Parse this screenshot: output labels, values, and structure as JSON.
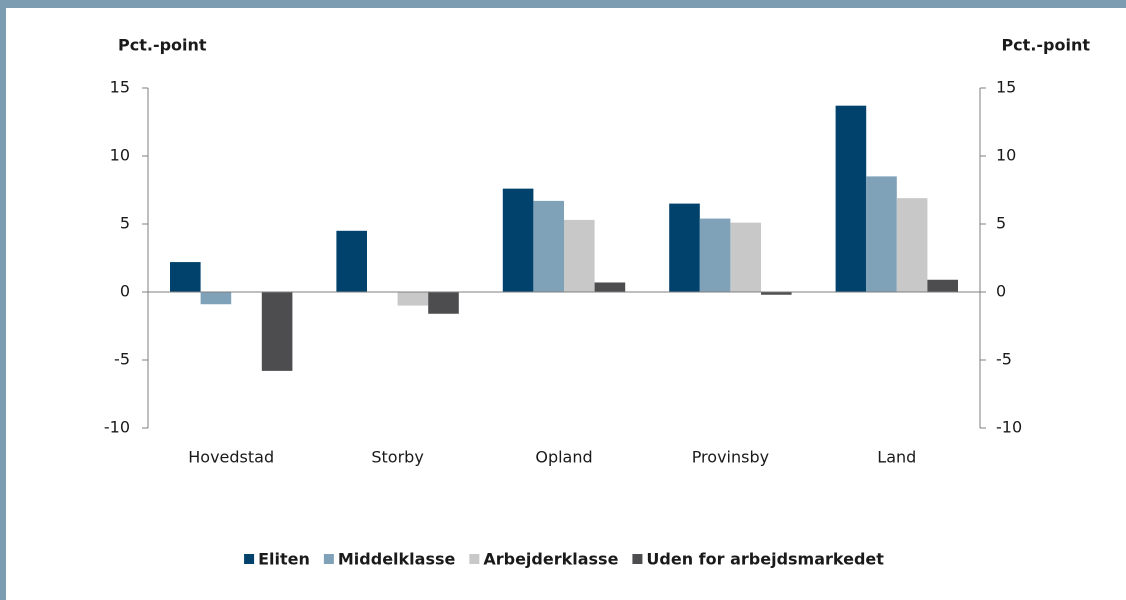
{
  "chart_data": {
    "type": "bar",
    "y_label": "Pct.-point",
    "y2_label": "Pct.-point",
    "categories": [
      "Hovedstad",
      "Storby",
      "Opland",
      "Provinsby",
      "Land"
    ],
    "series": [
      {
        "name": "Eliten",
        "color": "#00426b",
        "values": [
          2.2,
          4.5,
          7.6,
          6.5,
          13.7
        ]
      },
      {
        "name": "Middelklasse",
        "color": "#7fa2b9",
        "values": [
          -0.9,
          0,
          6.7,
          5.4,
          8.5
        ]
      },
      {
        "name": "Arbejderklasse",
        "color": "#c8c8c8",
        "values": [
          0,
          -1.0,
          5.3,
          5.1,
          6.9
        ]
      },
      {
        "name": "Uden for arbejdsmarkedet",
        "color": "#4d4d4f",
        "values": [
          -5.8,
          -1.6,
          0.7,
          -0.2,
          0.9
        ]
      }
    ],
    "ylim": [
      -10,
      15
    ],
    "yticks": [
      -10,
      -5,
      0,
      5,
      10,
      15
    ],
    "y2lim": [
      -10,
      15
    ],
    "y2ticks": [
      -10,
      -5,
      0,
      5,
      10,
      15
    ],
    "grid": false
  }
}
